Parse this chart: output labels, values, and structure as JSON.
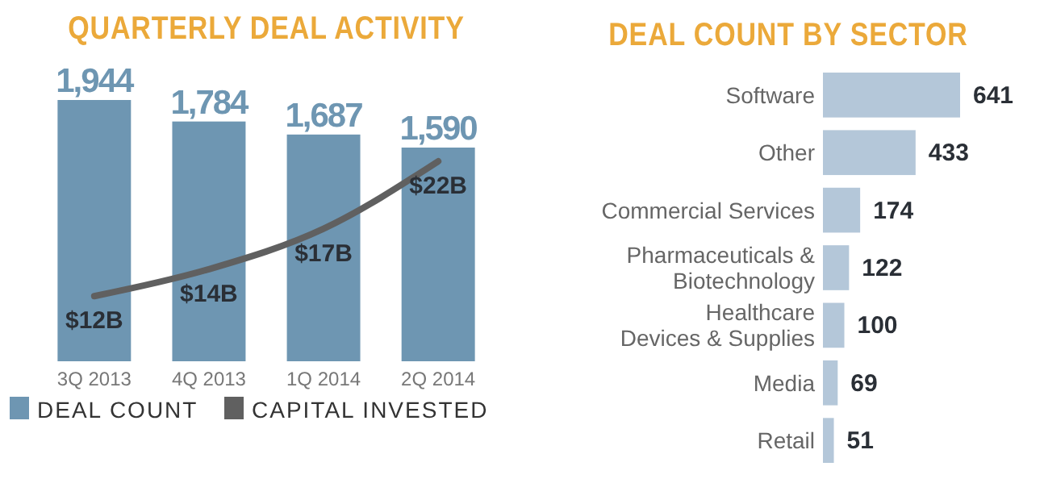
{
  "chart_data": [
    {
      "type": "bar",
      "title": "QUARTERLY DEAL ACTIVITY",
      "categories": [
        "3Q 2013",
        "4Q 2013",
        "1Q 2014",
        "2Q 2014"
      ],
      "legend": "bottom",
      "series": [
        {
          "name": "DEAL COUNT",
          "type": "bar",
          "color": "#6e96b2",
          "values": [
            1944,
            1784,
            1687,
            1590
          ],
          "value_labels": [
            "1,944",
            "1,784",
            "1,687",
            "1,590"
          ]
        },
        {
          "name": "CAPITAL INVESTED",
          "type": "line",
          "axis": "y2",
          "color": "#606060",
          "values": [
            12,
            14,
            17,
            22
          ],
          "value_labels": [
            "$12B",
            "$14B",
            "$17B",
            "$22B"
          ]
        }
      ]
    },
    {
      "type": "bar",
      "title": "DEAL COUNT BY SECTOR",
      "orientation": "horizontal",
      "data_labels": true,
      "color": "#b4c7d9",
      "categories": [
        "Software",
        "Other",
        "Commercial Services",
        "Pharmaceuticals &\nBiotechnology",
        "Healthcare\nDevices & Supplies",
        "Media",
        "Retail"
      ],
      "values": [
        641,
        433,
        174,
        122,
        100,
        69,
        51
      ]
    }
  ]
}
